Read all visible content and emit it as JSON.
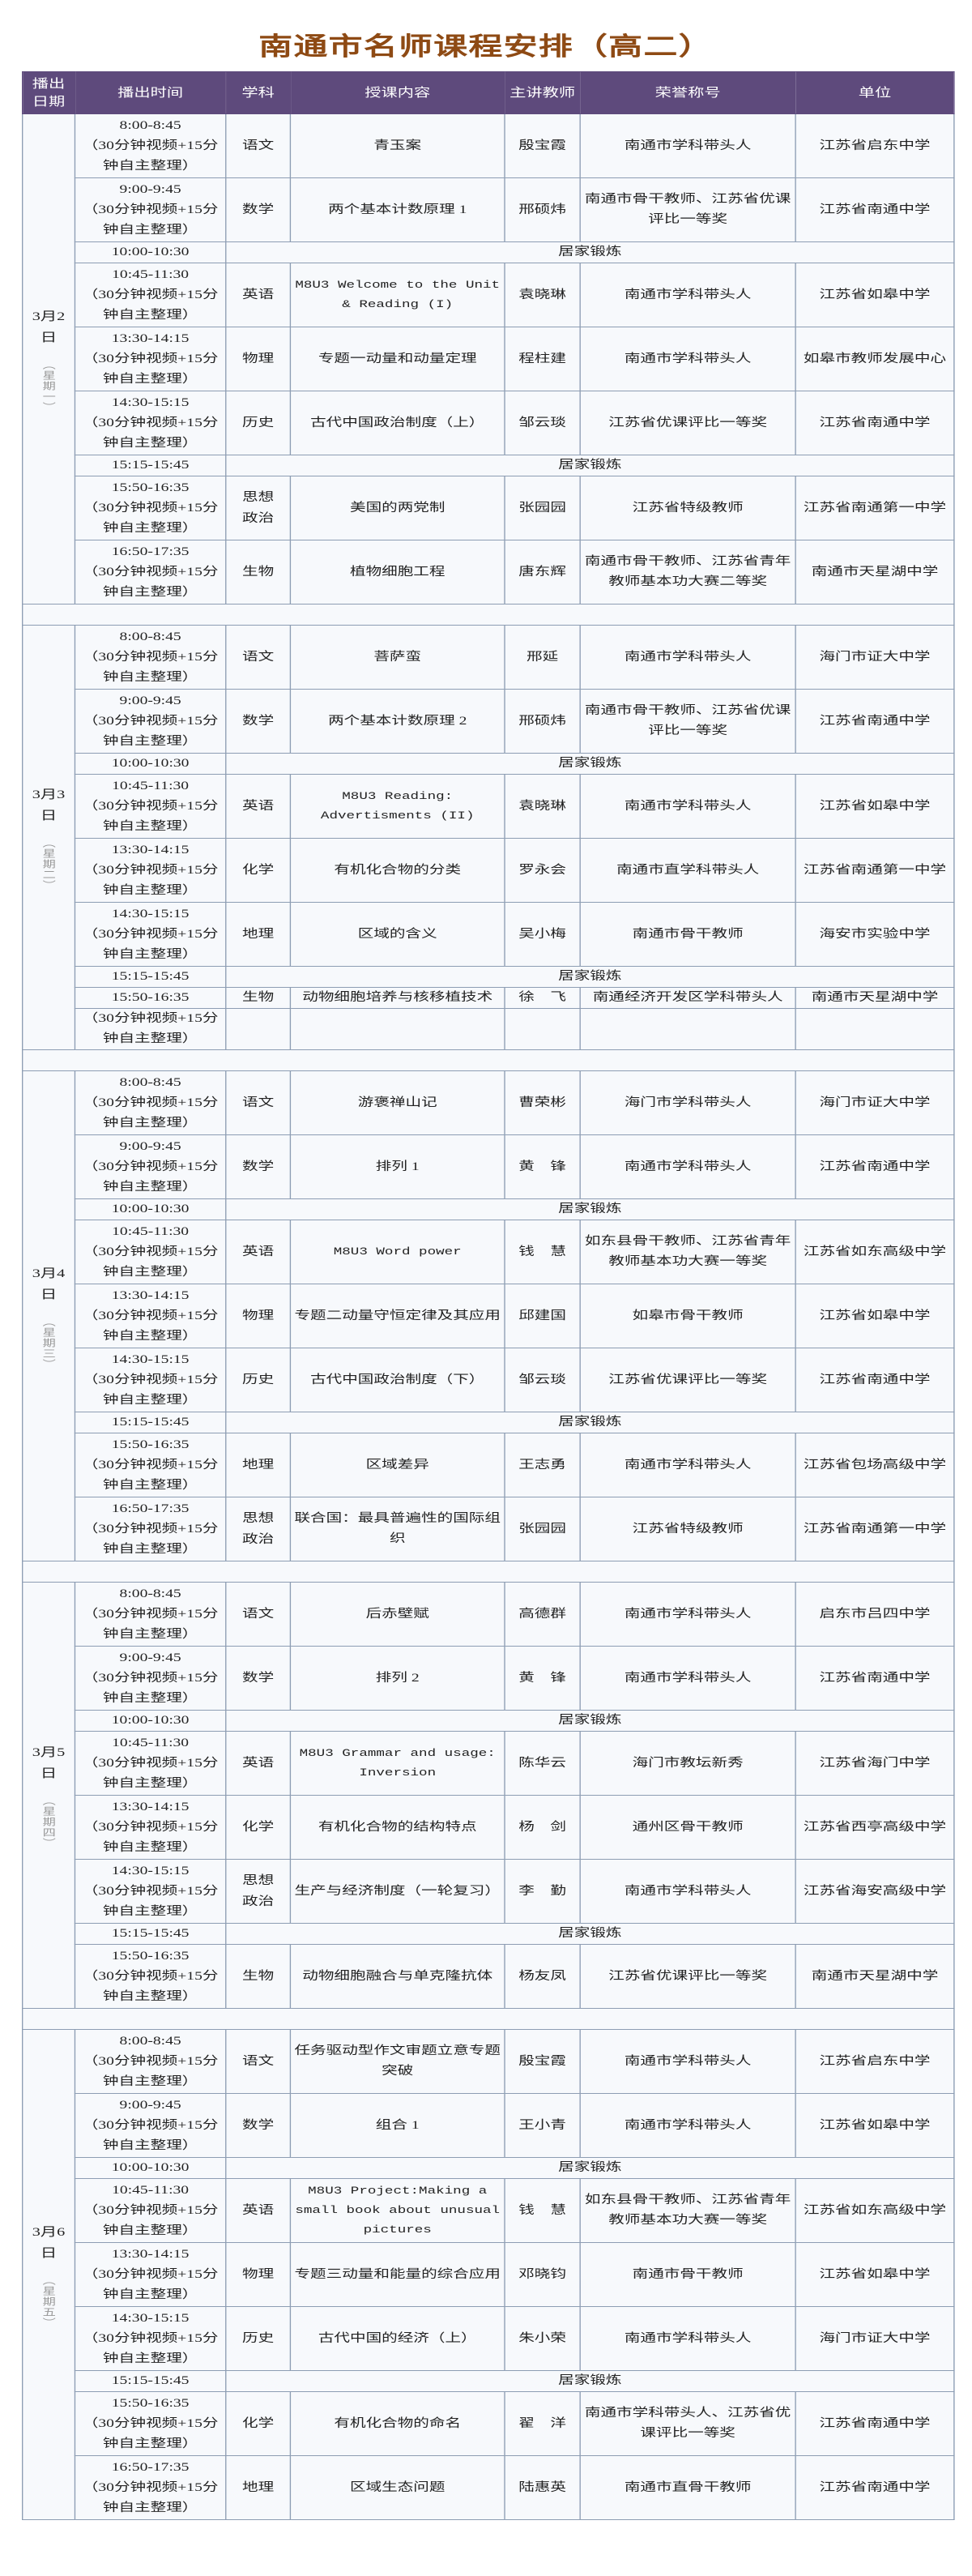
{
  "title": "南通市名师课程安排（高二）",
  "headers": [
    "播出日期",
    "播出时间",
    "学科",
    "授课内容",
    "主讲教师",
    "荣誉称号",
    "单位"
  ],
  "lesson_note": "（30分钟视频+15分钟自主整理）",
  "break_label": "居家锻炼",
  "colors": {
    "header_bg": "#5e4a7c",
    "title": "#8e4a14",
    "border": "#8d9db3"
  },
  "days": [
    {
      "date": "3月2日",
      "weekday": "（星期一）",
      "rows": [
        {
          "time": "8:00-8:45",
          "subject": "语文",
          "content": "青玉案",
          "teacher": "殷宝霞",
          "honor": "南通市学科带头人",
          "unit": "江苏省启东中学"
        },
        {
          "time": "9:00-9:45",
          "subject": "数学",
          "content": "两个基本计数原理 1",
          "teacher": "邢硕炜",
          "honor": "南通市骨干教师、江苏省优课评比一等奖",
          "unit": "江苏省南通中学"
        },
        {
          "time": "10:00-10:30",
          "break": true
        },
        {
          "time": "10:45-11:30",
          "subject": "英语",
          "content": "M8U3 Welcome to the Unit & Reading (I)",
          "teacher": "袁晓琳",
          "honor": "南通市学科带头人",
          "unit": "江苏省如皋中学",
          "en": true
        },
        {
          "time": "13:30-14:15",
          "subject": "物理",
          "content": "专题一动量和动量定理",
          "teacher": "程柱建",
          "honor": "南通市学科带头人",
          "unit": "如皋市教师发展中心"
        },
        {
          "time": "14:30-15:15",
          "subject": "历史",
          "content": "古代中国政治制度（上）",
          "teacher": "邹云琰",
          "honor": "江苏省优课评比一等奖",
          "unit": "江苏省南通中学"
        },
        {
          "time": "15:15-15:45",
          "break": true
        },
        {
          "time": "15:50-16:35",
          "subject": "思想政治",
          "content": "美国的两党制",
          "teacher": "张园园",
          "honor": "江苏省特级教师",
          "unit": "江苏省南通第一中学"
        },
        {
          "time": "16:50-17:35",
          "subject": "生物",
          "content": "植物细胞工程",
          "teacher": "唐东辉",
          "honor": "南通市骨干教师、江苏省青年教师基本功大赛二等奖",
          "unit": "南通市天星湖中学"
        }
      ]
    },
    {
      "date": "3月3日",
      "weekday": "（星期二）",
      "rows": [
        {
          "time": "8:00-8:45",
          "subject": "语文",
          "content": "菩萨蛮",
          "teacher": "邢延",
          "honor": "南通市学科带头人",
          "unit": "海门市证大中学"
        },
        {
          "time": "9:00-9:45",
          "subject": "数学",
          "content": "两个基本计数原理 2",
          "teacher": "邢硕炜",
          "honor": "南通市骨干教师、江苏省优课评比一等奖",
          "unit": "江苏省南通中学"
        },
        {
          "time": "10:00-10:30",
          "break": true
        },
        {
          "time": "10:45-11:30",
          "subject": "英语",
          "content": "M8U3 Reading: Advertisments (II)",
          "teacher": "袁晓琳",
          "honor": "南通市学科带头人",
          "unit": "江苏省如皋中学",
          "en": true
        },
        {
          "time": "13:30-14:15",
          "subject": "化学",
          "content": "有机化合物的分类",
          "teacher": "罗永会",
          "honor": "南通市直学科带头人",
          "unit": "江苏省南通第一中学"
        },
        {
          "time": "14:30-15:15",
          "subject": "地理",
          "content": "区域的含义",
          "teacher": "吴小梅",
          "honor": "南通市骨干教师",
          "unit": "海安市实验中学"
        },
        {
          "time": "15:15-15:45",
          "break": true
        },
        {
          "time": "15:50-16:35",
          "subject": "生物",
          "content": "动物细胞培养与核移植技术",
          "teacher": "徐　飞",
          "honor": "南通经济开发区学科带头人",
          "unit": "南通市天星湖中学",
          "single": true
        },
        {
          "note_only": true
        }
      ]
    },
    {
      "date": "3月4日",
      "weekday": "（星期三）",
      "rows": [
        {
          "time": "8:00-8:45",
          "subject": "语文",
          "content": "游褒禅山记",
          "teacher": "曹荣彬",
          "honor": "海门市学科带头人",
          "unit": "海门市证大中学"
        },
        {
          "time": "9:00-9:45",
          "subject": "数学",
          "content": "排列 1",
          "teacher": "黄　锋",
          "honor": "南通市学科带头人",
          "unit": "江苏省南通中学"
        },
        {
          "time": "10:00-10:30",
          "break": true
        },
        {
          "time": "10:45-11:30",
          "subject": "英语",
          "content": "M8U3 Word power",
          "teacher": "钱　慧",
          "honor": "如东县骨干教师、江苏省青年教师基本功大赛一等奖",
          "unit": "江苏省如东高级中学",
          "en": true
        },
        {
          "time": "13:30-14:15",
          "subject": "物理",
          "content": "专题二动量守恒定律及其应用",
          "teacher": "邱建国",
          "honor": "如皋市骨干教师",
          "unit": "江苏省如皋中学"
        },
        {
          "time": "14:30-15:15",
          "subject": "历史",
          "content": "古代中国政治制度（下）",
          "teacher": "邹云琰",
          "honor": "江苏省优课评比一等奖",
          "unit": "江苏省南通中学"
        },
        {
          "time": "15:15-15:45",
          "break": true
        },
        {
          "time": "15:50-16:35",
          "subject": "地理",
          "content": "区域差异",
          "teacher": "王志勇",
          "honor": "南通市学科带头人",
          "unit": "江苏省包场高级中学"
        },
        {
          "time": "16:50-17:35",
          "subject": "思想政治",
          "content": "联合国：最具普遍性的国际组织",
          "teacher": "张园园",
          "honor": "江苏省特级教师",
          "unit": "江苏省南通第一中学"
        }
      ]
    },
    {
      "date": "3月5日",
      "weekday": "（星期四）",
      "rows": [
        {
          "time": "8:00-8:45",
          "subject": "语文",
          "content": "后赤壁赋",
          "teacher": "高德群",
          "honor": "南通市学科带头人",
          "unit": "启东市吕四中学"
        },
        {
          "time": "9:00-9:45",
          "subject": "数学",
          "content": "排列 2",
          "teacher": "黄　锋",
          "honor": "南通市学科带头人",
          "unit": "江苏省南通中学"
        },
        {
          "time": "10:00-10:30",
          "break": true
        },
        {
          "time": "10:45-11:30",
          "subject": "英语",
          "content": "M8U3 Grammar and usage: Inversion",
          "teacher": "陈华云",
          "honor": "海门市教坛新秀",
          "unit": "江苏省海门中学",
          "en": true
        },
        {
          "time": "13:30-14:15",
          "subject": "化学",
          "content": "有机化合物的结构特点",
          "teacher": "杨　剑",
          "honor": "通州区骨干教师",
          "unit": "江苏省西亭高级中学"
        },
        {
          "time": "14:30-15:15",
          "subject": "思想政治",
          "content": "生产与经济制度（一轮复习）",
          "teacher": "李　勤",
          "honor": "南通市学科带头人",
          "unit": "江苏省海安高级中学"
        },
        {
          "time": "15:15-15:45",
          "break": true
        },
        {
          "time": "15:50-16:35",
          "subject": "生物",
          "content": "动物细胞融合与单克隆抗体",
          "teacher": "杨友凤",
          "honor": "江苏省优课评比一等奖",
          "unit": "南通市天星湖中学"
        }
      ]
    },
    {
      "date": "3月6日",
      "weekday": "（星期五）",
      "rows": [
        {
          "time": "8:00-8:45",
          "subject": "语文",
          "content": "任务驱动型作文审题立意专题突破",
          "teacher": "殷宝霞",
          "honor": "南通市学科带头人",
          "unit": "江苏省启东中学"
        },
        {
          "time": "9:00-9:45",
          "subject": "数学",
          "content": "组合 1",
          "teacher": "王小青",
          "honor": "南通市学科带头人",
          "unit": "江苏省如皋中学"
        },
        {
          "time": "10:00-10:30",
          "break": true
        },
        {
          "time": "10:45-11:30",
          "subject": "英语",
          "content": "M8U3 Project:Making a small book about unusual pictures",
          "teacher": "钱　慧",
          "honor": "如东县骨干教师、江苏省青年教师基本功大赛一等奖",
          "unit": "江苏省如东高级中学",
          "en": true
        },
        {
          "time": "13:30-14:15",
          "subject": "物理",
          "content": "专题三动量和能量的综合应用",
          "teacher": "邓晓钧",
          "honor": "南通市骨干教师",
          "unit": "江苏省如皋中学"
        },
        {
          "time": "14:30-15:15",
          "subject": "历史",
          "content": "古代中国的经济（上）",
          "teacher": "朱小荣",
          "honor": "南通市学科带头人",
          "unit": "海门市证大中学"
        },
        {
          "time": "15:15-15:45",
          "break": true
        },
        {
          "time": "15:50-16:35",
          "subject": "化学",
          "content": "有机化合物的命名",
          "teacher": "翟　洋",
          "honor": "南通市学科带头人、江苏省优课评比一等奖",
          "unit": "江苏省南通中学"
        },
        {
          "time": "16:50-17:35",
          "subject": "地理",
          "content": "区域生态问题",
          "teacher": "陆惠英",
          "honor": "南通市直骨干教师",
          "unit": "江苏省南通中学"
        }
      ]
    }
  ]
}
